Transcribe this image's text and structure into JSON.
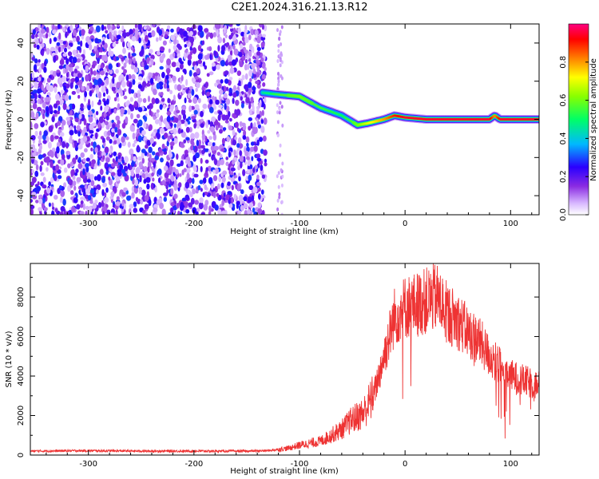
{
  "title": "C2E1.2024.316.21.13.R12",
  "chart_data": [
    {
      "type": "heatmap",
      "title": "C2E1.2024.316.21.13.R12",
      "xlabel": "Height of straight line (km)",
      "ylabel": "Frequency (Hz)",
      "xlim": [
        -355,
        127
      ],
      "ylim": [
        -50,
        50
      ],
      "x_ticks": [
        -300,
        -200,
        -100,
        0,
        100
      ],
      "y_ticks": [
        -40,
        -20,
        0,
        20,
        40
      ],
      "colorbar": {
        "label": "Normalized spectral amplitude",
        "range": [
          0.0,
          1.0
        ],
        "ticks": [
          0.0,
          0.2,
          0.4,
          0.6,
          0.8
        ],
        "colormap": "rainbow (white-purple-blue-cyan-green-yellow-red)"
      },
      "noise_region": {
        "x_range": [
          -355,
          -132
        ],
        "y_range": [
          -50,
          50
        ],
        "amplitude": [
          0.05,
          0.3
        ]
      },
      "signal_ridge": {
        "x": [
          -135,
          -120,
          -100,
          -80,
          -60,
          -45,
          -35,
          -20,
          -10,
          0,
          20,
          50,
          80,
          85,
          90,
          127
        ],
        "frequency": [
          14,
          13,
          12,
          6,
          2,
          -3,
          -2,
          0,
          2,
          1,
          0,
          0,
          0,
          2,
          0,
          0
        ],
        "amplitude": [
          0.45,
          0.55,
          0.6,
          0.55,
          0.5,
          0.6,
          0.7,
          0.8,
          0.9,
          0.95,
          0.95,
          0.95,
          0.95,
          0.8,
          0.95,
          0.95
        ]
      }
    },
    {
      "type": "line",
      "xlabel": "Height of straight line (km)",
      "ylabel": "SNR (10 * v/v)",
      "xlim": [
        -355,
        127
      ],
      "ylim": [
        0,
        9700
      ],
      "x_ticks": [
        -300,
        -200,
        -100,
        0,
        100
      ],
      "y_ticks": [
        0,
        2000,
        4000,
        6000,
        8000
      ],
      "color": "#ee3333",
      "series": [
        {
          "x": [
            -355,
            -300,
            -250,
            -200,
            -150,
            -130,
            -110,
            -100,
            -80,
            -60,
            -50,
            -40,
            -30,
            -20,
            -10,
            0,
            10,
            20,
            30,
            40,
            50,
            60,
            70,
            80,
            90,
            100,
            110,
            127
          ],
          "values": [
            200,
            220,
            200,
            200,
            200,
            220,
            350,
            500,
            700,
            1300,
            1800,
            2100,
            3000,
            5000,
            7000,
            7500,
            7600,
            7800,
            8000,
            7200,
            6800,
            6200,
            5800,
            5000,
            4500,
            4000,
            3800,
            3500
          ]
        }
      ]
    }
  ]
}
